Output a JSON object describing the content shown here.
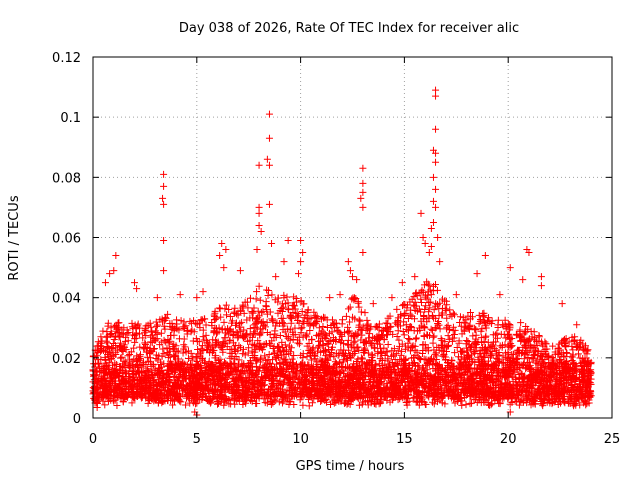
{
  "chart_data": {
    "type": "scatter",
    "title": "Day 038 of 2026, Rate Of TEC Index for receiver alic",
    "xlabel": "GPS time / hours",
    "ylabel": "ROTI / TECUs",
    "xlim": [
      0,
      25
    ],
    "ylim": [
      0,
      0.12
    ],
    "xticks": [
      0,
      5,
      10,
      15,
      20,
      25
    ],
    "yticks": [
      0,
      0.02,
      0.04,
      0.06,
      0.08,
      0.1,
      0.12
    ],
    "xtick_labels": [
      "0",
      "5",
      "10",
      "15",
      "20",
      "25"
    ],
    "ytick_labels": [
      "0",
      "0.02",
      "0.04",
      "0.06",
      "0.08",
      "0.1",
      "0.12"
    ],
    "grid": true,
    "marker": "+",
    "color": "#ff0000",
    "series": [
      {
        "name": "ROTI",
        "points": [
          [
            3.4,
            0.081
          ],
          [
            3.4,
            0.077
          ],
          [
            3.35,
            0.073
          ],
          [
            3.4,
            0.071
          ],
          [
            3.4,
            0.059
          ],
          [
            3.4,
            0.049
          ],
          [
            8.5,
            0.101
          ],
          [
            8.5,
            0.093
          ],
          [
            8.4,
            0.086
          ],
          [
            8.5,
            0.084
          ],
          [
            8.0,
            0.084
          ],
          [
            8.5,
            0.071
          ],
          [
            8.0,
            0.07
          ],
          [
            8.0,
            0.068
          ],
          [
            8.0,
            0.064
          ],
          [
            8.1,
            0.062
          ],
          [
            7.9,
            0.056
          ],
          [
            8.6,
            0.058
          ],
          [
            9.4,
            0.059
          ],
          [
            10.0,
            0.059
          ],
          [
            10.1,
            0.055
          ],
          [
            10.0,
            0.052
          ],
          [
            9.9,
            0.048
          ],
          [
            13.0,
            0.083
          ],
          [
            13.0,
            0.078
          ],
          [
            13.0,
            0.075
          ],
          [
            12.9,
            0.073
          ],
          [
            13.0,
            0.07
          ],
          [
            13.0,
            0.055
          ],
          [
            16.5,
            0.109
          ],
          [
            16.5,
            0.107
          ],
          [
            16.5,
            0.096
          ],
          [
            16.4,
            0.089
          ],
          [
            16.5,
            0.088
          ],
          [
            16.5,
            0.085
          ],
          [
            16.4,
            0.08
          ],
          [
            16.5,
            0.076
          ],
          [
            16.4,
            0.072
          ],
          [
            16.5,
            0.07
          ],
          [
            16.4,
            0.065
          ],
          [
            16.3,
            0.063
          ],
          [
            16.6,
            0.06
          ],
          [
            15.8,
            0.068
          ],
          [
            15.9,
            0.06
          ],
          [
            16.0,
            0.058
          ],
          [
            16.3,
            0.057
          ],
          [
            16.2,
            0.055
          ],
          [
            16.7,
            0.052
          ],
          [
            1.1,
            0.054
          ],
          [
            6.2,
            0.058
          ],
          [
            6.1,
            0.054
          ],
          [
            6.3,
            0.05
          ],
          [
            6.4,
            0.056
          ],
          [
            7.1,
            0.049
          ],
          [
            9.2,
            0.052
          ],
          [
            8.8,
            0.047
          ],
          [
            12.3,
            0.052
          ],
          [
            12.4,
            0.049
          ],
          [
            12.5,
            0.047
          ],
          [
            12.7,
            0.046
          ],
          [
            14.9,
            0.045
          ],
          [
            15.5,
            0.047
          ],
          [
            18.9,
            0.054
          ],
          [
            18.5,
            0.048
          ],
          [
            20.1,
            0.05
          ],
          [
            20.9,
            0.056
          ],
          [
            21.0,
            0.055
          ],
          [
            21.6,
            0.047
          ],
          [
            21.6,
            0.044
          ],
          [
            2.0,
            0.045
          ],
          [
            2.1,
            0.043
          ],
          [
            4.2,
            0.041
          ],
          [
            5.3,
            0.042
          ],
          [
            0.6,
            0.045
          ],
          [
            0.8,
            0.048
          ],
          [
            1.0,
            0.049
          ],
          [
            3.1,
            0.04
          ],
          [
            5.0,
            0.04
          ],
          [
            11.4,
            0.04
          ],
          [
            11.9,
            0.041
          ],
          [
            13.5,
            0.038
          ],
          [
            14.4,
            0.04
          ],
          [
            17.5,
            0.041
          ],
          [
            19.6,
            0.041
          ],
          [
            20.7,
            0.046
          ],
          [
            22.6,
            0.038
          ],
          [
            23.3,
            0.031
          ],
          [
            21.5,
            0.027
          ],
          [
            5.0,
            0.001
          ],
          [
            4.9,
            0.002
          ],
          [
            0.2,
            0.0035
          ],
          [
            0.1,
            0.005
          ],
          [
            20.1,
            0.002
          ],
          [
            0.0,
            0.009
          ],
          [
            0.0,
            0.012
          ],
          [
            0.0,
            0.016
          ],
          [
            23.9,
            0.005
          ],
          [
            24.0,
            0.015
          ]
        ]
      }
    ],
    "bulk_envelope": [
      [
        0.0,
        0.021
      ],
      [
        0.5,
        0.03
      ],
      [
        1.0,
        0.034
      ],
      [
        1.5,
        0.03
      ],
      [
        2.0,
        0.033
      ],
      [
        2.5,
        0.031
      ],
      [
        3.0,
        0.032
      ],
      [
        3.5,
        0.035
      ],
      [
        4.0,
        0.033
      ],
      [
        4.5,
        0.032
      ],
      [
        5.0,
        0.033
      ],
      [
        5.5,
        0.034
      ],
      [
        6.0,
        0.037
      ],
      [
        6.5,
        0.038
      ],
      [
        7.0,
        0.037
      ],
      [
        7.5,
        0.04
      ],
      [
        8.0,
        0.044
      ],
      [
        8.5,
        0.043
      ],
      [
        9.0,
        0.042
      ],
      [
        9.5,
        0.04
      ],
      [
        10.0,
        0.041
      ],
      [
        10.5,
        0.036
      ],
      [
        11.0,
        0.034
      ],
      [
        11.5,
        0.033
      ],
      [
        12.0,
        0.035
      ],
      [
        12.5,
        0.041
      ],
      [
        13.0,
        0.038
      ],
      [
        13.5,
        0.031
      ],
      [
        14.0,
        0.033
      ],
      [
        14.5,
        0.036
      ],
      [
        15.0,
        0.038
      ],
      [
        15.5,
        0.042
      ],
      [
        16.0,
        0.046
      ],
      [
        16.5,
        0.045
      ],
      [
        17.0,
        0.04
      ],
      [
        17.5,
        0.036
      ],
      [
        18.0,
        0.034
      ],
      [
        18.5,
        0.037
      ],
      [
        19.0,
        0.034
      ],
      [
        19.5,
        0.034
      ],
      [
        20.0,
        0.032
      ],
      [
        20.5,
        0.033
      ],
      [
        21.0,
        0.03
      ],
      [
        21.5,
        0.028
      ],
      [
        22.0,
        0.024
      ],
      [
        22.5,
        0.026
      ],
      [
        23.0,
        0.028
      ],
      [
        23.5,
        0.026
      ],
      [
        24.0,
        0.022
      ]
    ],
    "bulk_density_per_hour": 170
  }
}
